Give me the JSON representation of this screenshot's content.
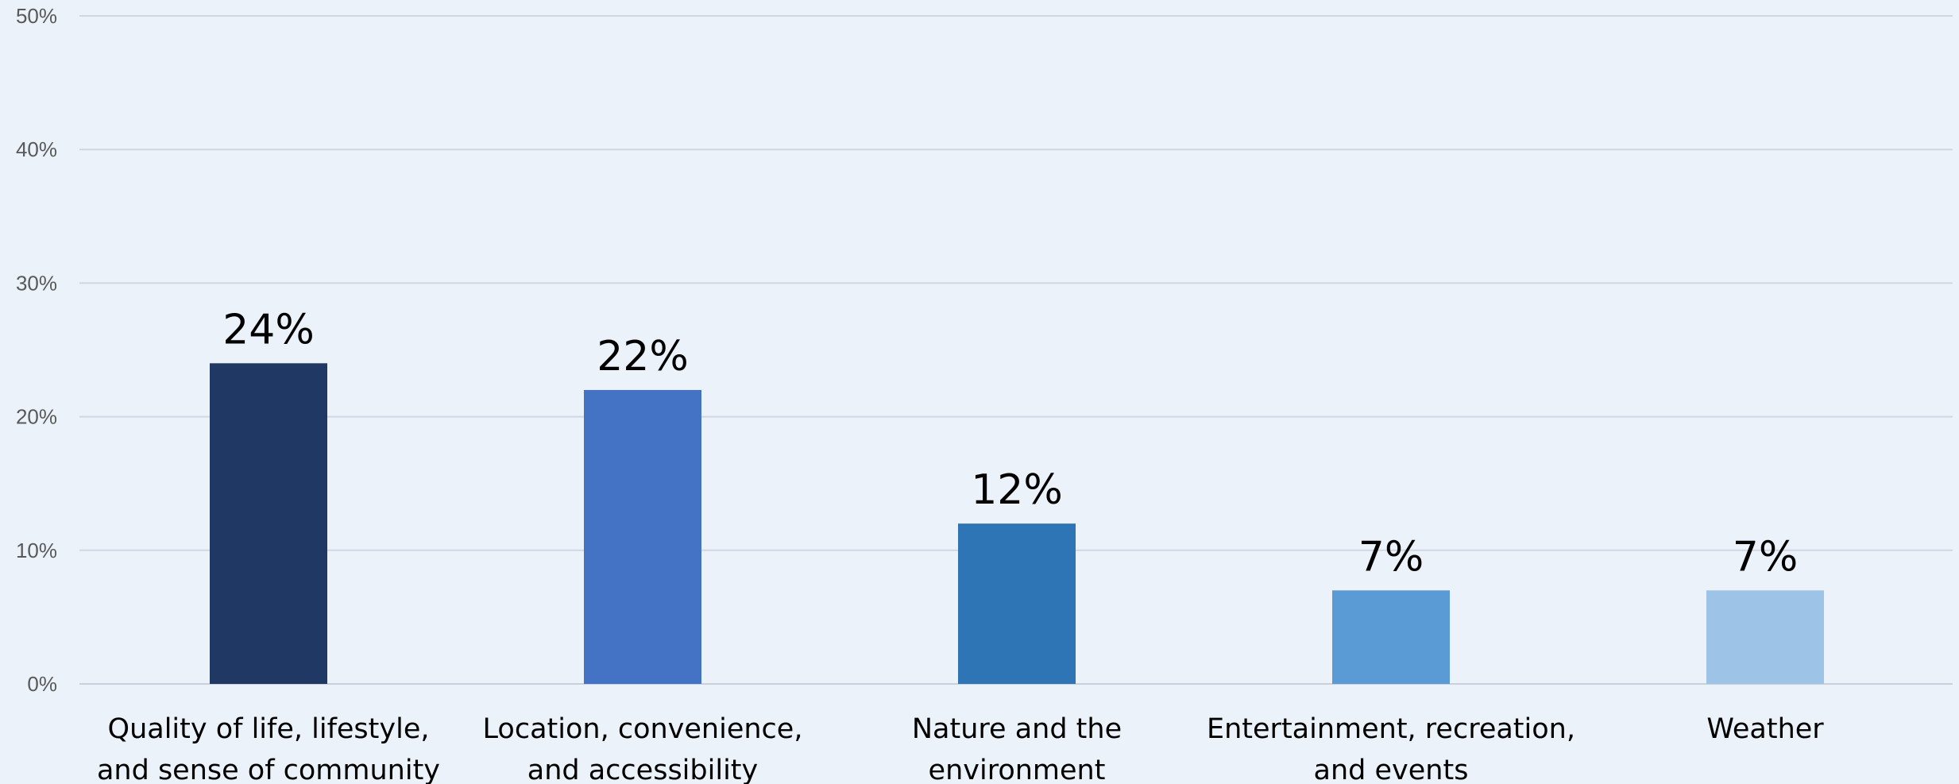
{
  "chart_data": {
    "type": "bar",
    "title": "",
    "xlabel": "",
    "ylabel": "",
    "categories": [
      [
        "Quality of life, lifestyle,",
        "and sense of community"
      ],
      [
        "Location, convenience,",
        "and accessibility"
      ],
      [
        "Nature and the",
        "environment"
      ],
      [
        "Entertainment, recreation,",
        "and events"
      ],
      [
        "Weather"
      ]
    ],
    "values": [
      24,
      22,
      12,
      7,
      7
    ],
    "data_labels": [
      "24%",
      "22%",
      "12%",
      "7%",
      "7%"
    ],
    "bar_colors": [
      "#203864",
      "#4472C4",
      "#2E75B6",
      "#5B9BD5",
      "#9DC3E6"
    ],
    "ylim": [
      0,
      50
    ],
    "yticks": [
      0,
      10,
      20,
      30,
      40,
      50
    ],
    "ytick_labels": [
      "0%",
      "10%",
      "20%",
      "30%",
      "40%",
      "50%"
    ],
    "grid": true,
    "legend": "none",
    "background_color": "#EBF2FA"
  }
}
